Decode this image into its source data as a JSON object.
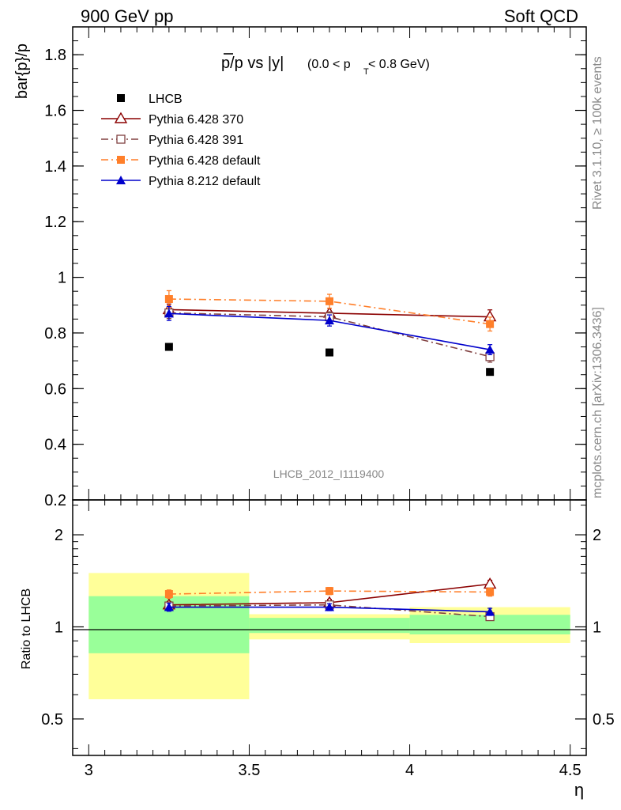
{
  "header": {
    "left": "900 GeV pp",
    "right": "Soft QCD"
  },
  "side_text": {
    "rivet": "Rivet 3.1.10, ≥ 100k events",
    "source": "mcplots.cern.ch [arXiv:1306.3436]"
  },
  "watermark": "LHCB_2012_I1119400",
  "chart_data": [
    {
      "type": "line",
      "panel": "main",
      "title": "p̄/p vs |y| (0.0 < pT < 0.8 GeV)",
      "title_parts": {
        "main": "p/p vs |y|",
        "cut_pre": "(0.0 < p",
        "cut_sub": "T",
        "cut_post": " < 0.8 GeV)"
      },
      "ylabel": "bar{p}/p",
      "ylim": [
        0.2,
        1.9
      ],
      "yticks": [
        0.2,
        0.4,
        0.6,
        0.8,
        1,
        1.2,
        1.4,
        1.6,
        1.8
      ],
      "ytick_labels": [
        "0.2",
        "0.4",
        "0.6",
        "0.8",
        "1",
        "1.2",
        "1.4",
        "1.6",
        "1.8"
      ],
      "xlim": [
        2.95,
        4.55
      ],
      "x": [
        3.25,
        3.75,
        4.25
      ],
      "series": [
        {
          "name": "LHCB",
          "marker": "square-filled",
          "color": "#000000",
          "line": "none",
          "values": [
            0.75,
            0.73,
            0.66
          ],
          "errors": [
            0.006,
            0.006,
            0.006
          ]
        },
        {
          "name": "Pythia 6.428 370",
          "marker": "triangle-open",
          "color": "#8b0000",
          "line": "solid",
          "values": [
            0.884,
            0.871,
            0.858
          ],
          "errors": [
            0.02,
            0.018,
            0.025
          ]
        },
        {
          "name": "Pythia 6.428 391",
          "marker": "square-open",
          "color": "#804040",
          "line": "dashdot",
          "values": [
            0.872,
            0.858,
            0.715
          ],
          "errors": [
            0.02,
            0.018,
            0.02
          ]
        },
        {
          "name": "Pythia 6.428 default",
          "marker": "square-filled",
          "color": "#ff7f2a",
          "line": "dashdot",
          "values": [
            0.922,
            0.914,
            0.832
          ],
          "errors": [
            0.03,
            0.025,
            0.025
          ]
        },
        {
          "name": "Pythia 8.212 default",
          "marker": "triangle-filled",
          "color": "#0000cc",
          "line": "solid",
          "values": [
            0.87,
            0.845,
            0.74
          ],
          "errors": [
            0.025,
            0.02,
            0.018
          ]
        }
      ]
    },
    {
      "type": "line",
      "panel": "ratio",
      "ylabel": "Ratio to LHCB",
      "xlabel": "η",
      "yscale": "log",
      "ylim": [
        0.38,
        2.6
      ],
      "yticks": [
        0.5,
        1,
        2
      ],
      "ytick_labels": [
        "0.5",
        "1",
        "2"
      ],
      "xlim": [
        2.95,
        4.55
      ],
      "xticks": [
        3,
        3.5,
        4,
        4.5
      ],
      "xtick_labels": [
        "3",
        "3.5",
        "4",
        "4.5"
      ],
      "bands": [
        {
          "x": [
            3.0,
            3.5
          ],
          "yellow": [
            0.58,
            1.5
          ],
          "green": [
            0.82,
            1.26
          ]
        },
        {
          "x": [
            3.5,
            4.0
          ],
          "yellow": [
            0.91,
            1.1
          ],
          "green": [
            0.955,
            1.07
          ]
        },
        {
          "x": [
            4.0,
            4.5
          ],
          "yellow": [
            0.885,
            1.16
          ],
          "green": [
            0.945,
            1.095
          ]
        }
      ],
      "x": [
        3.25,
        3.75,
        4.25
      ],
      "series": [
        {
          "name": "Pythia 6.428 370",
          "marker": "triangle-open",
          "color": "#8b0000",
          "line": "solid",
          "values": [
            1.18,
            1.2,
            1.38
          ],
          "errors": [
            0.03,
            0.03,
            0.04
          ]
        },
        {
          "name": "Pythia 6.428 391",
          "marker": "square-open",
          "color": "#804040",
          "line": "dashdot",
          "values": [
            1.17,
            1.18,
            1.08
          ],
          "errors": [
            0.03,
            0.03,
            0.03
          ]
        },
        {
          "name": "Pythia 6.428 default",
          "marker": "square-filled",
          "color": "#ff7f2a",
          "line": "dashdot",
          "values": [
            1.28,
            1.31,
            1.3
          ],
          "errors": [
            0.04,
            0.035,
            0.04
          ]
        },
        {
          "name": "Pythia 8.212 default",
          "marker": "triangle-filled",
          "color": "#0000cc",
          "line": "solid",
          "values": [
            1.16,
            1.16,
            1.12
          ],
          "errors": [
            0.035,
            0.03,
            0.03
          ]
        }
      ]
    }
  ]
}
